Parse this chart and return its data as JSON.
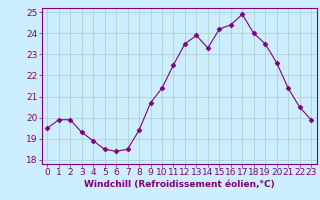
{
  "x": [
    0,
    1,
    2,
    3,
    4,
    5,
    6,
    7,
    8,
    9,
    10,
    11,
    12,
    13,
    14,
    15,
    16,
    17,
    18,
    19,
    20,
    21,
    22,
    23
  ],
  "y": [
    19.5,
    19.9,
    19.9,
    19.3,
    18.9,
    18.5,
    18.4,
    18.5,
    19.4,
    20.7,
    21.4,
    22.5,
    23.5,
    23.9,
    23.3,
    24.2,
    24.4,
    24.9,
    24.0,
    23.5,
    22.6,
    21.4,
    20.5,
    19.9
  ],
  "line_color": "#800080",
  "marker": "D",
  "marker_size": 2.5,
  "bg_color": "#cceeff",
  "grid_color": "#aacccc",
  "xlabel": "Windchill (Refroidissement éolien,°C)",
  "ylabel": "",
  "xlim": [
    -0.5,
    23.5
  ],
  "ylim": [
    17.8,
    25.2
  ],
  "yticks": [
    18,
    19,
    20,
    21,
    22,
    23,
    24,
    25
  ],
  "xticks": [
    0,
    1,
    2,
    3,
    4,
    5,
    6,
    7,
    8,
    9,
    10,
    11,
    12,
    13,
    14,
    15,
    16,
    17,
    18,
    19,
    20,
    21,
    22,
    23
  ],
  "label_color": "#800080",
  "tick_color": "#800080",
  "xlabel_fontsize": 6.5,
  "tick_fontsize": 6.5
}
